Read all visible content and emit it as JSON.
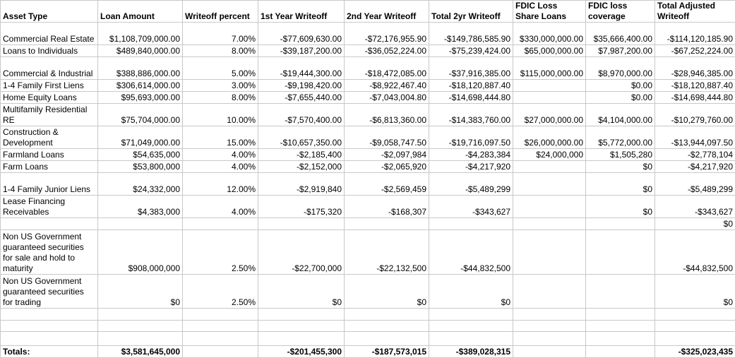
{
  "headers": [
    "Asset Type",
    "Loan Amount",
    "Writeoff percent",
    "1st Year Writeoff",
    "2nd Year Writeoff",
    "Total 2yr Writeoff",
    "FDIC Loss Share Loans",
    "FDIC loss coverage",
    "Total Adjusted Writeoff"
  ],
  "rows": [
    [
      "Commercial Real Estate",
      "$1,108,709,000.00",
      "7.00%",
      "-$77,609,630.00",
      "-$72,176,955.90",
      "-$149,786,585.90",
      "$330,000,000.00",
      "$35,666,400.00",
      "-$114,120,185.90"
    ],
    [
      "Loans to Individuals",
      "$489,840,000.00",
      "8.00%",
      "-$39,187,200.00",
      "-$36,052,224.00",
      "-$75,239,424.00",
      "$65,000,000.00",
      "$7,987,200.00",
      "-$67,252,224.00"
    ],
    [
      "Commercial & Industrial",
      "$388,886,000.00",
      "5.00%",
      "-$19,444,300.00",
      "-$18,472,085.00",
      "-$37,916,385.00",
      "$115,000,000.00",
      "$8,970,000.00",
      "-$28,946,385.00"
    ],
    [
      "1-4 Family First Liens",
      "$306,614,000.00",
      "3.00%",
      "-$9,198,420.00",
      "-$8,922,467.40",
      "-$18,120,887.40",
      "",
      "$0.00",
      "-$18,120,887.40"
    ],
    [
      "Home Equity Loans",
      "$95,693,000.00",
      "8.00%",
      "-$7,655,440.00",
      "-$7,043,004.80",
      "-$14,698,444.80",
      "",
      "$0.00",
      "-$14,698,444.80"
    ],
    [
      "Multifamily Residential RE",
      "$75,704,000.00",
      "10.00%",
      "-$7,570,400.00",
      "-$6,813,360.00",
      "-$14,383,760.00",
      "$27,000,000.00",
      "$4,104,000.00",
      "-$10,279,760.00"
    ],
    [
      "Construction & Development",
      "$71,049,000.00",
      "15.00%",
      "-$10,657,350.00",
      "-$9,058,747.50",
      "-$19,716,097.50",
      "$26,000,000.00",
      "$5,772,000.00",
      "-$13,944,097.50"
    ],
    [
      "Farmland Loans",
      "$54,635,000",
      "4.00%",
      "-$2,185,400",
      "-$2,097,984",
      "-$4,283,384",
      "$24,000,000",
      "$1,505,280",
      "-$2,778,104"
    ],
    [
      "Farm Loans",
      "$53,800,000",
      "4.00%",
      "-$2,152,000",
      "-$2,065,920",
      "-$4,217,920",
      "",
      "$0",
      "-$4,217,920"
    ],
    [
      "1-4 Family Junior Liens",
      "$24,332,000",
      "12.00%",
      "-$2,919,840",
      "-$2,569,459",
      "-$5,489,299",
      "",
      "$0",
      "-$5,489,299"
    ],
    [
      "Lease Financing Receivables",
      "$4,383,000",
      "4.00%",
      "-$175,320",
      "-$168,307",
      "-$343,627",
      "",
      "$0",
      "-$343,627"
    ],
    [
      "",
      "",
      "",
      "",
      "",
      "",
      "",
      "",
      "$0"
    ],
    [
      "Non US Government guaranteed securities for sale and hold to maturity",
      "$908,000,000",
      "2.50%",
      "-$22,700,000",
      "-$22,132,500",
      "-$44,832,500",
      "",
      "",
      "-$44,832,500"
    ],
    [
      "Non US Government guaranteed securities for trading",
      "$0",
      "2.50%",
      "$0",
      "$0",
      "$0",
      "",
      "",
      "$0"
    ],
    [
      "",
      "",
      "",
      "",
      "",
      "",
      "",
      "",
      ""
    ],
    [
      "",
      "",
      "",
      "",
      "",
      "",
      "",
      "",
      ""
    ],
    [
      "",
      "",
      "",
      "",
      "",
      "",
      "",
      "",
      ""
    ]
  ],
  "totals": [
    "Totals:",
    "$3,581,645,000",
    "",
    "-$201,455,300",
    "-$187,573,015",
    "-$389,028,315",
    "",
    "",
    "-$325,023,435"
  ]
}
